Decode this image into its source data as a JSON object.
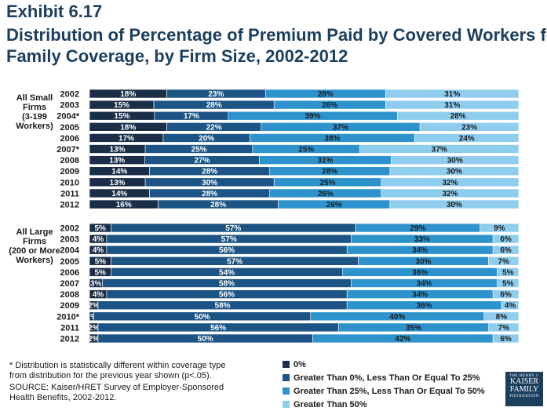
{
  "header": {
    "exhibit": "Exhibit 6.17",
    "title_line1": "Distribution of Percentage of Premium Paid by Covered Workers for",
    "title_line2": "Family Coverage, by Firm Size, 2002-2012"
  },
  "colors": [
    "#1a2e48",
    "#1c5585",
    "#2e93cd",
    "#8fcdee"
  ],
  "chart_data": [
    {
      "type": "bar",
      "orientation": "horizontal",
      "stacked": true,
      "group_label": [
        "All Small",
        "Firms",
        "(3-199",
        "Workers)"
      ],
      "categories": [
        "2002",
        "2003",
        "2004*",
        "2005",
        "2006",
        "2007*",
        "2008",
        "2009",
        "2010",
        "2011",
        "2012"
      ],
      "series": [
        {
          "name": "0%",
          "values": [
            18,
            15,
            15,
            18,
            17,
            13,
            13,
            14,
            13,
            14,
            16
          ]
        },
        {
          "name": "Greater Than 0%, Less Than Or Equal To 25%",
          "values": [
            23,
            28,
            17,
            22,
            20,
            25,
            27,
            28,
            30,
            28,
            28
          ]
        },
        {
          "name": "Greater Than 25%, Less Than Or Equal To 50%",
          "values": [
            28,
            26,
            39,
            37,
            38,
            25,
            31,
            28,
            25,
            26,
            26
          ]
        },
        {
          "name": "Greater Than 50%",
          "values": [
            31,
            31,
            28,
            23,
            24,
            37,
            30,
            30,
            32,
            32,
            30
          ]
        }
      ]
    },
    {
      "type": "bar",
      "orientation": "horizontal",
      "stacked": true,
      "group_label": [
        "All Large",
        "Firms",
        "(200 or More",
        "Workers)"
      ],
      "categories": [
        "2002",
        "2003",
        "2004",
        "2005",
        "2006",
        "2007",
        "2008",
        "2009",
        "2010*",
        "2011",
        "2012"
      ],
      "series": [
        {
          "name": "0%",
          "values": [
            5,
            4,
            4,
            5,
            5,
            3,
            4,
            2,
            1,
            2,
            2
          ]
        },
        {
          "name": "Greater Than 0%, Less Than Or Equal To 25%",
          "values": [
            57,
            57,
            56,
            57,
            54,
            58,
            56,
            58,
            50,
            56,
            50
          ]
        },
        {
          "name": "Greater Than 25%, Less Than Or Equal To 50%",
          "values": [
            29,
            33,
            34,
            30,
            36,
            34,
            34,
            36,
            40,
            35,
            42
          ]
        },
        {
          "name": "Greater Than 50%",
          "values": [
            9,
            6,
            6,
            7,
            5,
            5,
            6,
            4,
            8,
            7,
            6
          ]
        }
      ]
    }
  ],
  "legend": [
    "0%",
    "Greater Than 0%, Less Than Or Equal To 25%",
    "Greater Than 25%, Less Than Or Equal To 50%",
    "Greater Than 50%"
  ],
  "footnote": "* Distribution is statistically different within coverage type from distribution for the previous year shown (p<.05).",
  "source": "SOURCE:  Kaiser/HRET Survey of Employer-Sponsored Health Benefits, 2002-2012.",
  "logo": {
    "line1": "THE HENRY J.",
    "line2": "KAISER",
    "line3": "FAMILY",
    "line4": "FOUNDATION"
  }
}
